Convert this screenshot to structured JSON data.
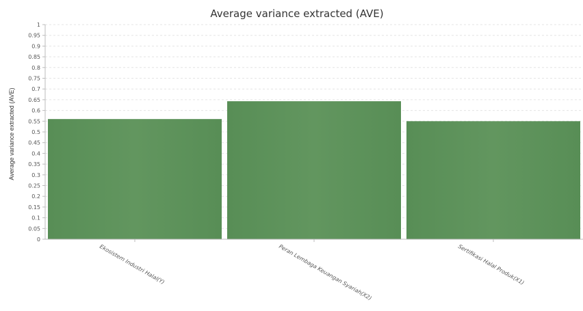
{
  "chart_data": {
    "type": "bar",
    "title": "Average variance extracted (AVE)",
    "xlabel": "",
    "ylabel": "Average variance extracted (AVE)",
    "categories": [
      "Ekosistem Industri Halal(Y)",
      "Peran Lembaga Keuangan Syariah(X2)",
      "Sertifikasi Halal Produk(X1)"
    ],
    "values": [
      0.56,
      0.643,
      0.55
    ],
    "ylim": [
      0,
      1
    ],
    "yticks": [
      "0",
      "0.05",
      "0.1",
      "0.15",
      "0.2",
      "0.25",
      "0.3",
      "0.35",
      "0.4",
      "0.45",
      "0.5",
      "0.55",
      "0.6",
      "0.65",
      "0.7",
      "0.75",
      "0.8",
      "0.85",
      "0.9",
      "0.95",
      "1"
    ],
    "grid": true,
    "legend": "none",
    "bar_color": "#62965f",
    "bar_color_dark": "#588e56"
  }
}
